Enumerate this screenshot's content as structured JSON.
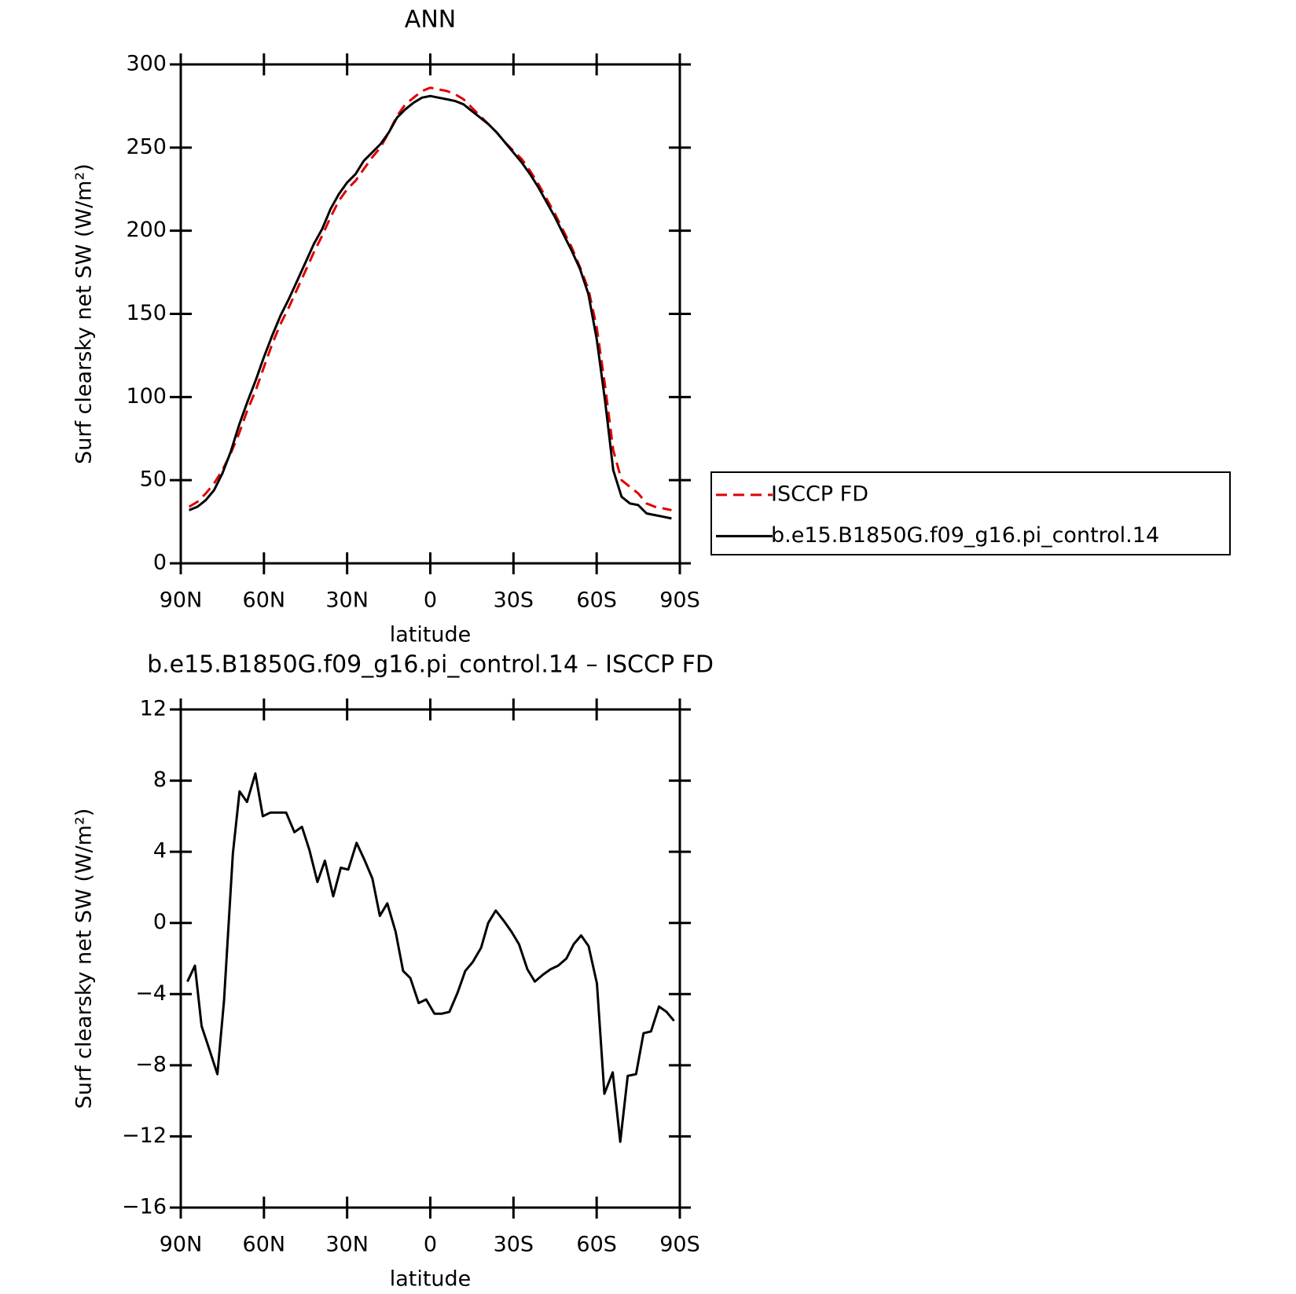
{
  "chart_data": [
    {
      "type": "line",
      "title": "ANN",
      "xlabel": "latitude",
      "ylabel": "Surf clearsky net SW (W/m²)",
      "x": [
        87,
        84,
        81,
        78,
        75,
        72,
        69,
        66,
        63,
        60,
        57,
        54,
        51,
        48,
        45,
        42,
        39,
        36,
        33,
        30,
        27,
        24,
        21,
        18,
        15,
        12,
        9,
        6,
        3,
        0,
        -3,
        -6,
        -9,
        -12,
        -15,
        -18,
        -21,
        -24,
        -27,
        -30,
        -33,
        -36,
        -39,
        -42,
        -45,
        -48,
        -51,
        -54,
        -57,
        -60,
        -63,
        -66,
        -69,
        -72,
        -75,
        -78,
        -81,
        -84,
        -87
      ],
      "series": [
        {
          "name": "ISCCP FD",
          "color": "#e00000",
          "linestyle": "dashed",
          "values": [
            34,
            37,
            42,
            48,
            56,
            66,
            78,
            92,
            104,
            118,
            132,
            144,
            154,
            165,
            176,
            187,
            197,
            208,
            218,
            225,
            230,
            237,
            244,
            250,
            259,
            269,
            276,
            280,
            284,
            286,
            285,
            284,
            282,
            279,
            274,
            269,
            264,
            259,
            253,
            248,
            243,
            236,
            228,
            219,
            210,
            200,
            190,
            178,
            165,
            142,
            107,
            68,
            50,
            46,
            42,
            36,
            34,
            33,
            32
          ]
        },
        {
          "name": "b.e15.B1850G.f09_g16.pi_control.14",
          "color": "#000000",
          "linestyle": "solid",
          "values": [
            32,
            34,
            38,
            44,
            54,
            67,
            83,
            97,
            110,
            124,
            137,
            149,
            159,
            170,
            181,
            192,
            201,
            213,
            222,
            229,
            234,
            242,
            247,
            252,
            259,
            268,
            273,
            277,
            280,
            281,
            280,
            279,
            278,
            276,
            272,
            268,
            264,
            259,
            253,
            247,
            241,
            234,
            226,
            217,
            208,
            198,
            188,
            177,
            162,
            135,
            98,
            56,
            40,
            36,
            35,
            30,
            29,
            28,
            27
          ]
        }
      ],
      "xlim": [
        90,
        -90
      ],
      "xticks": [
        {
          "value": 90,
          "label": "90N"
        },
        {
          "value": 60,
          "label": "60N"
        },
        {
          "value": 30,
          "label": "30N"
        },
        0,
        {
          "value": -30,
          "label": "30S"
        },
        {
          "value": -60,
          "label": "60S"
        },
        {
          "value": -90,
          "label": "90S"
        }
      ],
      "ylim": [
        0,
        300
      ],
      "yticks": [
        0,
        50,
        100,
        150,
        200,
        250,
        300
      ]
    },
    {
      "type": "line",
      "title": "b.e15.B1850G.f09_g16.pi_control.14 – ISCCP FD",
      "xlabel": "latitude",
      "ylabel": "Surf clearsky net SW (W/m²)",
      "x": [
        87.6,
        84.9,
        82.5,
        79.5,
        76.8,
        74.4,
        71.2,
        68.8,
        66.1,
        63.1,
        60.4,
        57.7,
        55.0,
        52.0,
        49.0,
        46.3,
        43.6,
        40.7,
        38.0,
        35.0,
        32.3,
        29.6,
        26.6,
        23.9,
        20.9,
        18.2,
        15.5,
        12.5,
        9.8,
        7.2,
        4.2,
        1.5,
        -1.5,
        -4.2,
        -6.9,
        -9.9,
        -12.6,
        -15.3,
        -18.3,
        -20.9,
        -23.6,
        -26.6,
        -29.3,
        -32.0,
        -35.0,
        -37.7,
        -40.7,
        -43.4,
        -46.1,
        -49.1,
        -51.7,
        -54.4,
        -57.1,
        -60.1,
        -62.8,
        -65.8,
        -68.5,
        -71.2,
        -74.2,
        -76.9,
        -79.6,
        -82.5,
        -85.2,
        -87.9
      ],
      "series": [
        {
          "color": "#000000",
          "linestyle": "solid",
          "values": [
            -3.3,
            -2.4,
            -5.8,
            -7.2,
            -8.5,
            -4.4,
            3.9,
            7.4,
            6.8,
            8.4,
            6.0,
            6.2,
            6.2,
            6.2,
            5.1,
            5.4,
            4.1,
            2.3,
            3.5,
            1.5,
            3.1,
            3.0,
            4.5,
            3.6,
            2.5,
            0.4,
            1.1,
            -0.5,
            -2.7,
            -3.1,
            -4.5,
            -4.3,
            -5.1,
            -5.1,
            -5.0,
            -3.9,
            -2.7,
            -2.2,
            -1.4,
            0.0,
            0.7,
            0.1,
            -0.5,
            -1.2,
            -2.6,
            -3.3,
            -2.9,
            -2.6,
            -2.4,
            -2.0,
            -1.2,
            -0.7,
            -1.3,
            -3.4,
            -9.6,
            -8.4,
            -12.3,
            -8.6,
            -8.5,
            -6.2,
            -6.1,
            -4.7,
            -5.0,
            -5.5
          ]
        }
      ],
      "xlim": [
        90,
        -90
      ],
      "xticks": [
        {
          "value": 90,
          "label": "90N"
        },
        {
          "value": 60,
          "label": "60N"
        },
        {
          "value": 30,
          "label": "30N"
        },
        0,
        {
          "value": -30,
          "label": "30S"
        },
        {
          "value": -60,
          "label": "60S"
        },
        {
          "value": -90,
          "label": "90S"
        }
      ],
      "ylim": [
        -16,
        12
      ],
      "yticks": [
        {
          "value": -16,
          "label": "−16"
        },
        {
          "value": -12,
          "label": "−12"
        },
        {
          "value": -8,
          "label": "−8"
        },
        {
          "value": -4,
          "label": "−4"
        },
        0,
        4,
        8,
        12
      ]
    }
  ]
}
